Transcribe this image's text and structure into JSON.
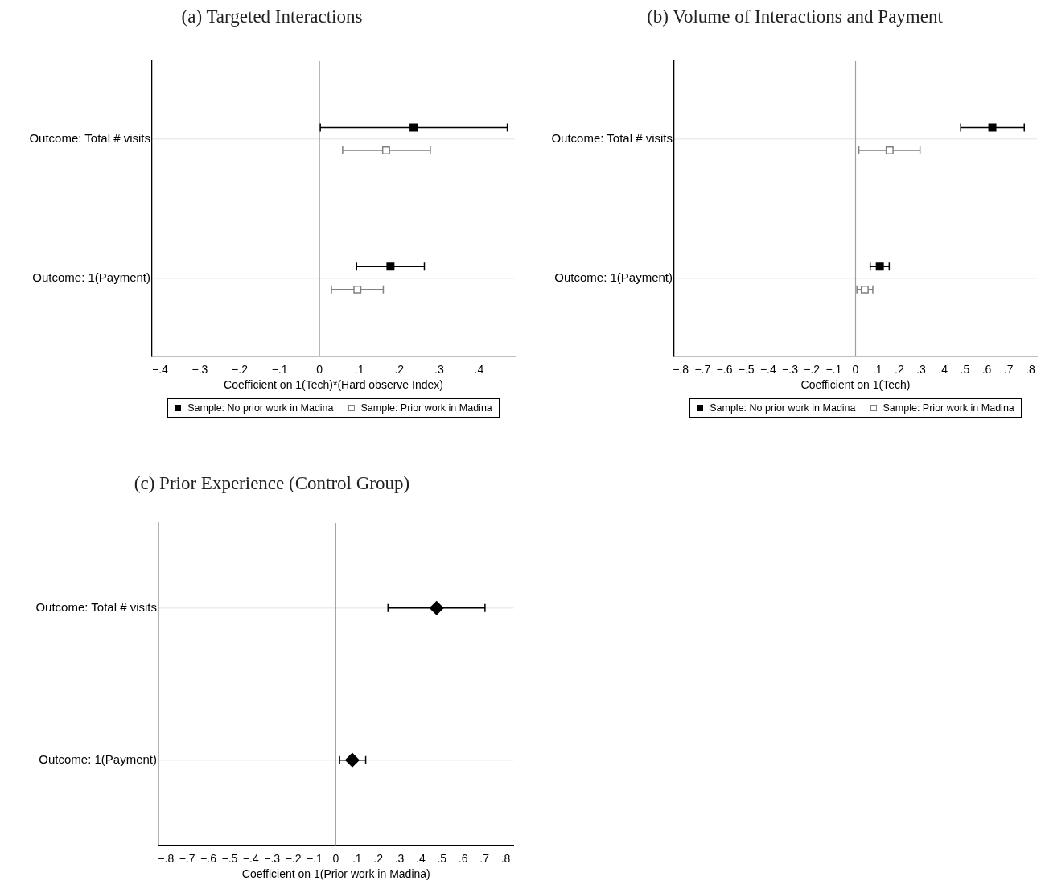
{
  "chart_data": [
    {
      "type": "scatter",
      "title": "(a) Targeted Interactions",
      "xlabel": "Coefficient on 1(Tech)*(Hard observe Index)",
      "orientation": "horizontal",
      "categories": [
        "Outcome: Total # visits",
        "Outcome: 1(Payment)"
      ],
      "xlim": [
        -0.42,
        0.49
      ],
      "xticks": [
        {
          "value": -0.4,
          "label": "−.4"
        },
        {
          "value": -0.3,
          "label": "−.3"
        },
        {
          "value": -0.2,
          "label": "−.2"
        },
        {
          "value": -0.1,
          "label": "−.1"
        },
        {
          "value": 0,
          "label": "0"
        },
        {
          "value": 0.1,
          "label": ".1"
        },
        {
          "value": 0.2,
          "label": ".2"
        },
        {
          "value": 0.3,
          "label": ".3"
        },
        {
          "value": 0.4,
          "label": ".4"
        }
      ],
      "ref_lines": [
        {
          "axis": "x",
          "value": 0,
          "color": "#a0a0a0"
        }
      ],
      "grid": "y",
      "legend": "bottom",
      "marker": "square",
      "series": [
        {
          "name": "Sample: No prior work in Madina",
          "color": "#000000",
          "values": [
            0.236,
            0.178
          ],
          "errors": [
            [
              0.002,
              0.471
            ],
            [
              0.093,
              0.263
            ]
          ]
        },
        {
          "name": "Sample: Prior work in Madina",
          "color": "#808080",
          "values": [
            0.167,
            0.095
          ],
          "errors": [
            [
              0.058,
              0.278
            ],
            [
              0.03,
              0.16
            ]
          ]
        }
      ]
    },
    {
      "type": "scatter",
      "title": "(b) Volume of Interactions and Payment",
      "xlabel": "Coefficient on 1(Tech)",
      "orientation": "horizontal",
      "categories": [
        "Outcome: Total # visits",
        "Outcome: 1(Payment)"
      ],
      "xlim": [
        -0.83,
        0.83
      ],
      "xticks": [
        {
          "value": -0.8,
          "label": "−.8"
        },
        {
          "value": -0.7,
          "label": "−.7"
        },
        {
          "value": -0.6,
          "label": "−.6"
        },
        {
          "value": -0.5,
          "label": "−.5"
        },
        {
          "value": -0.4,
          "label": "−.4"
        },
        {
          "value": -0.3,
          "label": "−.3"
        },
        {
          "value": -0.2,
          "label": "−.2"
        },
        {
          "value": -0.1,
          "label": "−.1"
        },
        {
          "value": 0,
          "label": "0"
        },
        {
          "value": 0.1,
          "label": ".1"
        },
        {
          "value": 0.2,
          "label": ".2"
        },
        {
          "value": 0.3,
          "label": ".3"
        },
        {
          "value": 0.4,
          "label": ".4"
        },
        {
          "value": 0.5,
          "label": ".5"
        },
        {
          "value": 0.6,
          "label": ".6"
        },
        {
          "value": 0.7,
          "label": ".7"
        },
        {
          "value": 0.8,
          "label": ".8"
        }
      ],
      "ref_lines": [
        {
          "axis": "x",
          "value": 0,
          "color": "#a0a0a0"
        }
      ],
      "grid": "y",
      "legend": "bottom",
      "marker": "square",
      "series": [
        {
          "name": "Sample: No prior work in Madina",
          "color": "#000000",
          "values": [
            0.626,
            0.111
          ],
          "errors": [
            [
              0.481,
              0.772
            ],
            [
              0.067,
              0.154
            ]
          ]
        },
        {
          "name": "Sample: Prior work in Madina",
          "color": "#808080",
          "values": [
            0.156,
            0.042
          ],
          "errors": [
            [
              0.015,
              0.295
            ],
            [
              0.006,
              0.079
            ]
          ]
        }
      ]
    },
    {
      "type": "scatter",
      "title": "(c) Prior Experience (Control Group)",
      "xlabel": "Coefficient on 1(Prior work in Madina)",
      "orientation": "horizontal",
      "categories": [
        "Outcome: Total # visits",
        "Outcome: 1(Payment)"
      ],
      "xlim": [
        -0.835,
        0.838
      ],
      "xticks": [
        {
          "value": -0.8,
          "label": "−.8"
        },
        {
          "value": -0.7,
          "label": "−.7"
        },
        {
          "value": -0.6,
          "label": "−.6"
        },
        {
          "value": -0.5,
          "label": "−.5"
        },
        {
          "value": -0.4,
          "label": "−.4"
        },
        {
          "value": -0.3,
          "label": "−.3"
        },
        {
          "value": -0.2,
          "label": "−.2"
        },
        {
          "value": -0.1,
          "label": "−.1"
        },
        {
          "value": 0,
          "label": "0"
        },
        {
          "value": 0.1,
          "label": ".1"
        },
        {
          "value": 0.2,
          "label": ".2"
        },
        {
          "value": 0.3,
          "label": ".3"
        },
        {
          "value": 0.4,
          "label": ".4"
        },
        {
          "value": 0.5,
          "label": ".5"
        },
        {
          "value": 0.6,
          "label": ".6"
        },
        {
          "value": 0.7,
          "label": ".7"
        },
        {
          "value": 0.8,
          "label": ".8"
        }
      ],
      "ref_lines": [
        {
          "axis": "x",
          "value": 0,
          "color": "#a0a0a0"
        }
      ],
      "grid": "y",
      "marker": "diamond",
      "series": [
        {
          "color": "#000000",
          "values": [
            0.475,
            0.078
          ],
          "errors": [
            [
              0.246,
              0.703
            ],
            [
              0.018,
              0.141
            ]
          ]
        }
      ]
    }
  ]
}
